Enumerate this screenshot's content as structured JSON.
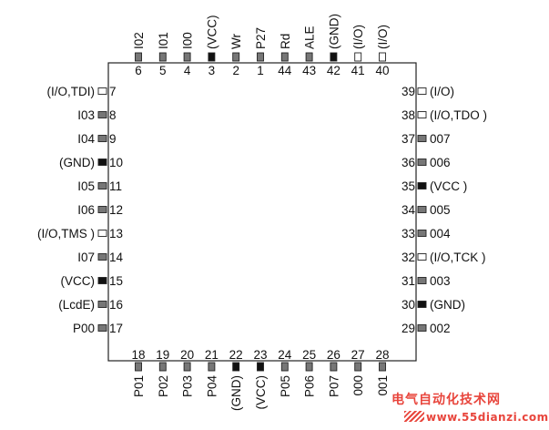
{
  "pins": [
    {
      "num": "1",
      "label": "P27",
      "side": "top",
      "slot": 5,
      "fill": "gray"
    },
    {
      "num": "2",
      "label": "Wr",
      "side": "top",
      "slot": 4,
      "fill": "gray"
    },
    {
      "num": "3",
      "label": "(VCC)",
      "side": "top",
      "slot": 3,
      "fill": "black"
    },
    {
      "num": "4",
      "label": "I00",
      "side": "top",
      "slot": 2,
      "fill": "gray"
    },
    {
      "num": "5",
      "label": "I01",
      "side": "top",
      "slot": 1,
      "fill": "gray"
    },
    {
      "num": "6",
      "label": "I02",
      "side": "top",
      "slot": 0,
      "fill": "gray"
    },
    {
      "num": "7",
      "label": "(I/O,TDI)",
      "side": "left",
      "slot": 0,
      "fill": "white"
    },
    {
      "num": "8",
      "label": "I03",
      "side": "left",
      "slot": 1,
      "fill": "gray"
    },
    {
      "num": "9",
      "label": "I04",
      "side": "left",
      "slot": 2,
      "fill": "gray"
    },
    {
      "num": "10",
      "label": "(GND)",
      "side": "left",
      "slot": 3,
      "fill": "black"
    },
    {
      "num": "11",
      "label": "I05",
      "side": "left",
      "slot": 4,
      "fill": "gray"
    },
    {
      "num": "12",
      "label": "I06",
      "side": "left",
      "slot": 5,
      "fill": "gray"
    },
    {
      "num": "13",
      "label": "(I/O,TMS )",
      "side": "left",
      "slot": 6,
      "fill": "white"
    },
    {
      "num": "14",
      "label": "I07",
      "side": "left",
      "slot": 7,
      "fill": "gray"
    },
    {
      "num": "15",
      "label": "(VCC)",
      "side": "left",
      "slot": 8,
      "fill": "black"
    },
    {
      "num": "16",
      "label": "(LcdE)",
      "side": "left",
      "slot": 9,
      "fill": "gray"
    },
    {
      "num": "17",
      "label": "P00",
      "side": "left",
      "slot": 10,
      "fill": "gray"
    },
    {
      "num": "18",
      "label": "P01",
      "side": "bottom",
      "slot": 0,
      "fill": "gray"
    },
    {
      "num": "19",
      "label": "P02",
      "side": "bottom",
      "slot": 1,
      "fill": "gray"
    },
    {
      "num": "20",
      "label": "P03",
      "side": "bottom",
      "slot": 2,
      "fill": "gray"
    },
    {
      "num": "21",
      "label": "P04",
      "side": "bottom",
      "slot": 3,
      "fill": "gray"
    },
    {
      "num": "22",
      "label": "(GND)",
      "side": "bottom",
      "slot": 4,
      "fill": "black"
    },
    {
      "num": "23",
      "label": "(VCC)",
      "side": "bottom",
      "slot": 5,
      "fill": "black"
    },
    {
      "num": "24",
      "label": "P05",
      "side": "bottom",
      "slot": 6,
      "fill": "gray"
    },
    {
      "num": "25",
      "label": "P06",
      "side": "bottom",
      "slot": 7,
      "fill": "gray"
    },
    {
      "num": "26",
      "label": "P07",
      "side": "bottom",
      "slot": 8,
      "fill": "gray"
    },
    {
      "num": "27",
      "label": "000",
      "side": "bottom",
      "slot": 9,
      "fill": "gray"
    },
    {
      "num": "28",
      "label": "001",
      "side": "bottom",
      "slot": 10,
      "fill": "gray"
    },
    {
      "num": "29",
      "label": "002",
      "side": "right",
      "slot": 10,
      "fill": "gray"
    },
    {
      "num": "30",
      "label": "(GND)",
      "side": "right",
      "slot": 9,
      "fill": "black"
    },
    {
      "num": "31",
      "label": "003",
      "side": "right",
      "slot": 8,
      "fill": "gray"
    },
    {
      "num": "32",
      "label": "(I/O,TCK )",
      "side": "right",
      "slot": 7,
      "fill": "white"
    },
    {
      "num": "33",
      "label": "004",
      "side": "right",
      "slot": 6,
      "fill": "gray"
    },
    {
      "num": "34",
      "label": "005",
      "side": "right",
      "slot": 5,
      "fill": "gray"
    },
    {
      "num": "35",
      "label": "(VCC )",
      "side": "right",
      "slot": 4,
      "fill": "black"
    },
    {
      "num": "36",
      "label": "006",
      "side": "right",
      "slot": 3,
      "fill": "gray"
    },
    {
      "num": "37",
      "label": "007",
      "side": "right",
      "slot": 2,
      "fill": "gray"
    },
    {
      "num": "38",
      "label": "(I/O,TDO )",
      "side": "right",
      "slot": 1,
      "fill": "white"
    },
    {
      "num": "39",
      "label": "(I/O)",
      "side": "right",
      "slot": 0,
      "fill": "white"
    },
    {
      "num": "40",
      "label": "(I/O)",
      "side": "top",
      "slot": 10,
      "fill": "white"
    },
    {
      "num": "41",
      "label": "(I/O)",
      "side": "top",
      "slot": 9,
      "fill": "white"
    },
    {
      "num": "42",
      "label": "(GND)",
      "side": "top",
      "slot": 8,
      "fill": "black"
    },
    {
      "num": "43",
      "label": "ALE",
      "side": "top",
      "slot": 7,
      "fill": "gray"
    },
    {
      "num": "44",
      "label": "Rd",
      "side": "top",
      "slot": 6,
      "fill": "gray"
    }
  ],
  "colors": {
    "gray": "#777777",
    "black": "#111111",
    "white": "#ffffff",
    "outline": "#222222"
  },
  "watermark": {
    "line1": "电气自动化技术网",
    "line2": "www.55dianzi.com"
  }
}
